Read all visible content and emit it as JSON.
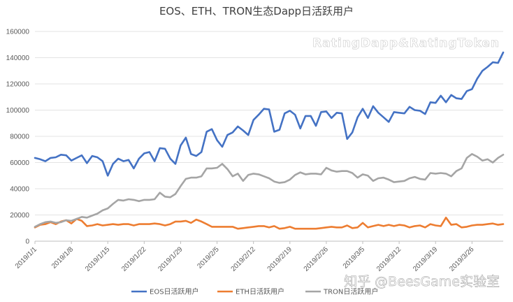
{
  "chart_data": {
    "type": "line",
    "title": "EOS、ETH、TRON生态Dapp日活跃用户",
    "xlabel": "",
    "ylabel": "",
    "ylim": [
      0,
      160000
    ],
    "yticks": [
      0,
      20000,
      40000,
      60000,
      80000,
      100000,
      120000,
      140000,
      160000
    ],
    "x_tick_labels": [
      "2019/1/1",
      "2019/1/8",
      "2019/1/15",
      "2019/1/22",
      "2019/1/29",
      "2019/2/5",
      "2019/2/12",
      "2019/2/19",
      "2019/2/26",
      "2019/3/5",
      "2019/3/12",
      "2019/3/19",
      "2019/3/26"
    ],
    "x_start": "2019/1/1",
    "x_end": "2019/4/1",
    "grid": true,
    "legend_position": "bottom",
    "series": [
      {
        "name": "EOS日活跃用户",
        "color": "#4472C4",
        "values": [
          63500,
          62500,
          61000,
          63500,
          64000,
          66000,
          65500,
          61500,
          63500,
          65500,
          59500,
          65000,
          64000,
          61000,
          50000,
          59000,
          63000,
          61000,
          62000,
          55500,
          63000,
          67000,
          68000,
          61000,
          71000,
          70500,
          63000,
          59000,
          73000,
          79000,
          66500,
          65000,
          68000,
          83500,
          85500,
          77000,
          72000,
          81000,
          83000,
          87500,
          84500,
          81000,
          92500,
          96500,
          101000,
          100500,
          83500,
          85000,
          97500,
          99500,
          96500,
          86000,
          95500,
          95500,
          88000,
          98500,
          99000,
          94000,
          98000,
          97500,
          78000,
          83000,
          94500,
          101000,
          94000,
          103000,
          98000,
          94500,
          91000,
          98500,
          98000,
          97500,
          102500,
          100000,
          99500,
          97000,
          106000,
          105500,
          111000,
          106000,
          111500,
          109000,
          108500,
          114500,
          116000,
          124000,
          130000,
          133000,
          136500,
          136000,
          144000
        ]
      },
      {
        "name": "ETH日活跃用户",
        "color": "#ED7D31",
        "values": [
          10500,
          12500,
          13000,
          14500,
          13000,
          15000,
          16000,
          13500,
          17000,
          15500,
          11500,
          12000,
          13000,
          12000,
          12500,
          13000,
          12500,
          13000,
          13000,
          12000,
          13000,
          13000,
          13000,
          13500,
          13000,
          12000,
          13000,
          15000,
          15000,
          15500,
          14000,
          16500,
          15000,
          13000,
          11000,
          11000,
          11000,
          11000,
          11000,
          9500,
          10000,
          10500,
          11000,
          11500,
          11500,
          10500,
          11500,
          9500,
          10000,
          11000,
          9500,
          9500,
          9500,
          9500,
          9500,
          10000,
          10500,
          11000,
          10500,
          10500,
          12000,
          10000,
          10500,
          14000,
          10500,
          11500,
          12500,
          11500,
          12500,
          11500,
          12500,
          12000,
          10500,
          11500,
          12000,
          10500,
          13000,
          12000,
          11500,
          18000,
          12500,
          13000,
          10500,
          11000,
          12000,
          12500,
          12500,
          13000,
          13500,
          12500,
          13000
        ]
      },
      {
        "name": "TRON日活跃用户",
        "color": "#A5A5A5",
        "values": [
          11000,
          13000,
          14500,
          15000,
          14000,
          14500,
          16000,
          15500,
          17000,
          18500,
          18000,
          19500,
          21000,
          23500,
          25000,
          28500,
          31500,
          31000,
          32000,
          31500,
          30500,
          31500,
          31500,
          32000,
          37000,
          34000,
          33500,
          36000,
          42000,
          47500,
          48500,
          48500,
          49500,
          55500,
          55500,
          56000,
          59000,
          55000,
          49500,
          51500,
          46000,
          50500,
          51500,
          51000,
          49500,
          48000,
          45500,
          44500,
          45000,
          47000,
          50500,
          52500,
          51000,
          51500,
          51500,
          51000,
          56000,
          54000,
          53000,
          53500,
          53500,
          52000,
          48500,
          51000,
          50000,
          46000,
          48000,
          48500,
          47000,
          45000,
          45500,
          46000,
          48000,
          49000,
          47500,
          47000,
          52000,
          51500,
          52000,
          51500,
          49500,
          53500,
          55500,
          63500,
          66500,
          64500,
          61500,
          62500,
          60000,
          63500,
          66000
        ]
      }
    ]
  },
  "watermarks": {
    "top": "RatingDapp&RatingToken",
    "bottom": "知乎 @BeesGame实验室"
  }
}
